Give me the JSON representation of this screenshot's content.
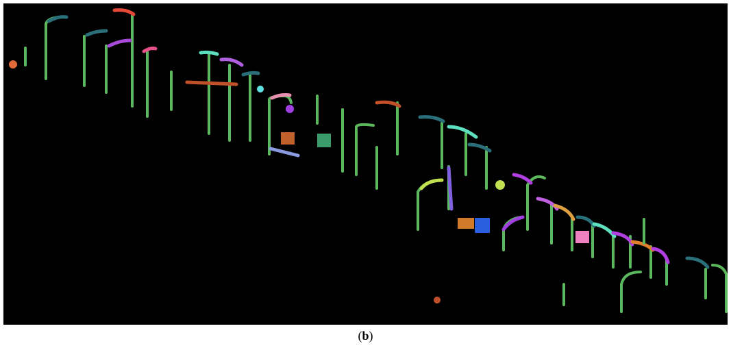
{
  "caption": [
    "(",
    "b",
    ")"
  ]
}
